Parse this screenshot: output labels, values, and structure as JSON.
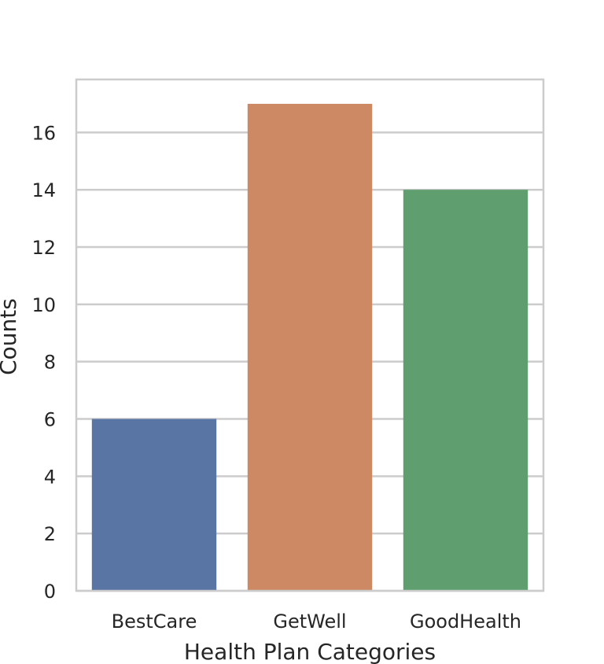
{
  "chart_data": {
    "type": "bar",
    "title": "",
    "xlabel": "Health Plan Categories",
    "ylabel": "Counts",
    "categories": [
      "BestCare",
      "GetWell",
      "GoodHealth"
    ],
    "values": [
      6,
      17,
      14
    ],
    "colors": [
      "#5975a4",
      "#cc8963",
      "#5f9e6e"
    ],
    "ylim": [
      0,
      17.85
    ],
    "yticks": [
      0,
      2,
      4,
      6,
      8,
      10,
      12,
      14,
      16
    ],
    "grid": true,
    "legend": "none"
  },
  "style": {
    "grid_color": "#cccccc",
    "spine_color": "#cccccc",
    "text_color": "#262626"
  }
}
